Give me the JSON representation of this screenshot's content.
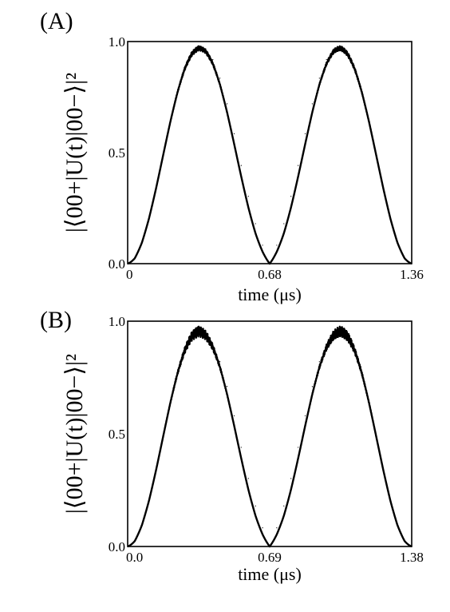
{
  "chart_data": [
    {
      "type": "line",
      "panel_label": "(A)",
      "xlabel": "time (μs)",
      "ylabel": "|⟨00+|U(t)|00−⟩|²",
      "xlim": [
        0,
        1.36
      ],
      "ylim": [
        0,
        1.0
      ],
      "xticks": [
        {
          "value": 0,
          "label": "0"
        },
        {
          "value": 0.68,
          "label": "0.68"
        },
        {
          "value": 1.36,
          "label": "1.36"
        }
      ],
      "yticks": [
        {
          "value": 0.0,
          "label": "0.0"
        },
        {
          "value": 0.5,
          "label": "0.5"
        },
        {
          "value": 1.0,
          "label": "1.0"
        }
      ],
      "grid": false,
      "series": [
        {
          "x": [
            0,
            0.034,
            0.068,
            0.102,
            0.136,
            0.17,
            0.204,
            0.238,
            0.272,
            0.306,
            0.34,
            0.374,
            0.408,
            0.442,
            0.476,
            0.51,
            0.544,
            0.578,
            0.612,
            0.646,
            0.68,
            0.714,
            0.748,
            0.782,
            0.816,
            0.85,
            0.884,
            0.918,
            0.952,
            0.986,
            1.02,
            1.054,
            1.088,
            1.122,
            1.156,
            1.19,
            1.224,
            1.258,
            1.292,
            1.326,
            1.36
          ],
          "y": [
            0.0,
            0.024,
            0.094,
            0.203,
            0.338,
            0.485,
            0.631,
            0.761,
            0.868,
            0.941,
            0.975,
            0.967,
            0.919,
            0.835,
            0.72,
            0.585,
            0.442,
            0.303,
            0.18,
            0.083,
            0.0,
            0.083,
            0.18,
            0.303,
            0.442,
            0.585,
            0.72,
            0.835,
            0.919,
            0.967,
            0.975,
            0.941,
            0.868,
            0.761,
            0.631,
            0.485,
            0.338,
            0.203,
            0.094,
            0.024,
            0.0
          ],
          "color": "#000000"
        }
      ],
      "peak_band": {
        "max": 0.985,
        "min": 0.965
      }
    },
    {
      "type": "line",
      "panel_label": "(B)",
      "xlabel": "time (μs)",
      "ylabel": "|⟨00+|U(t)|00−⟩|²",
      "xlim": [
        0,
        1.38
      ],
      "ylim": [
        0,
        1.0
      ],
      "xticks": [
        {
          "value": 0,
          "label": "0.0"
        },
        {
          "value": 0.69,
          "label": "0.69"
        },
        {
          "value": 1.38,
          "label": "1.38"
        }
      ],
      "yticks": [
        {
          "value": 0.0,
          "label": "0.0"
        },
        {
          "value": 0.5,
          "label": "0.5"
        },
        {
          "value": 1.0,
          "label": "1.0"
        }
      ],
      "grid": false,
      "series": [
        {
          "x": [
            0,
            0.0345,
            0.069,
            0.1035,
            0.138,
            0.1725,
            0.207,
            0.2415,
            0.276,
            0.3105,
            0.345,
            0.3795,
            0.414,
            0.4485,
            0.483,
            0.5175,
            0.552,
            0.5865,
            0.621,
            0.6555,
            0.69,
            0.7245,
            0.759,
            0.7935,
            0.828,
            0.8625,
            0.897,
            0.9315,
            0.966,
            1.0005,
            1.035,
            1.0695,
            1.104,
            1.1385,
            1.173,
            1.2075,
            1.242,
            1.2765,
            1.311,
            1.3455,
            1.38
          ],
          "y": [
            0.0,
            0.024,
            0.094,
            0.203,
            0.338,
            0.485,
            0.631,
            0.761,
            0.868,
            0.941,
            0.97,
            0.952,
            0.9,
            0.82,
            0.71,
            0.58,
            0.44,
            0.302,
            0.18,
            0.083,
            0.0,
            0.083,
            0.18,
            0.302,
            0.44,
            0.58,
            0.71,
            0.82,
            0.9,
            0.952,
            0.97,
            0.941,
            0.868,
            0.761,
            0.631,
            0.485,
            0.338,
            0.203,
            0.094,
            0.024,
            0.0
          ],
          "color": "#000000"
        }
      ],
      "peak_band": {
        "max": 0.985,
        "min": 0.94
      }
    }
  ]
}
